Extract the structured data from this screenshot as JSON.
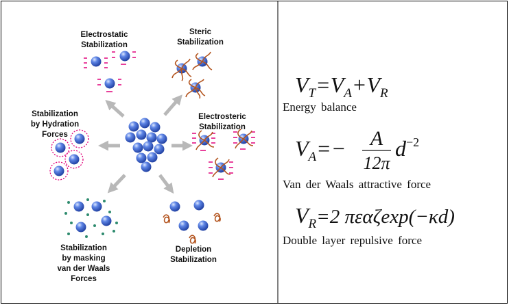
{
  "labels": [
    {
      "lines": [
        "Electrostatic",
        "Stabilization"
      ]
    },
    {
      "lines": [
        "Steric",
        "Stabilization"
      ]
    },
    {
      "lines": [
        "Stabilization",
        "by Hydration",
        "Forces"
      ]
    },
    {
      "lines": [
        "Electrosteric",
        "Stabilization"
      ]
    },
    {
      "lines": [
        "Stabilization",
        "by masking",
        "van der Waals",
        "Forces"
      ]
    },
    {
      "lines": [
        "Depletion",
        "Stabilization"
      ]
    }
  ],
  "equations": [
    {
      "pieces": [
        "V",
        "T",
        "=V",
        "A",
        "+V",
        "R"
      ],
      "caption": "Energy balance"
    },
    {
      "pieces": [
        "V",
        "A",
        "=−",
        "A",
        "12π",
        "d",
        "−2"
      ],
      "caption": "Van der Waals attractive force"
    },
    {
      "pieces": [
        "V",
        "R",
        "=2 πεαζexp(−κd)"
      ],
      "caption": "Double layer repulsive force"
    }
  ]
}
